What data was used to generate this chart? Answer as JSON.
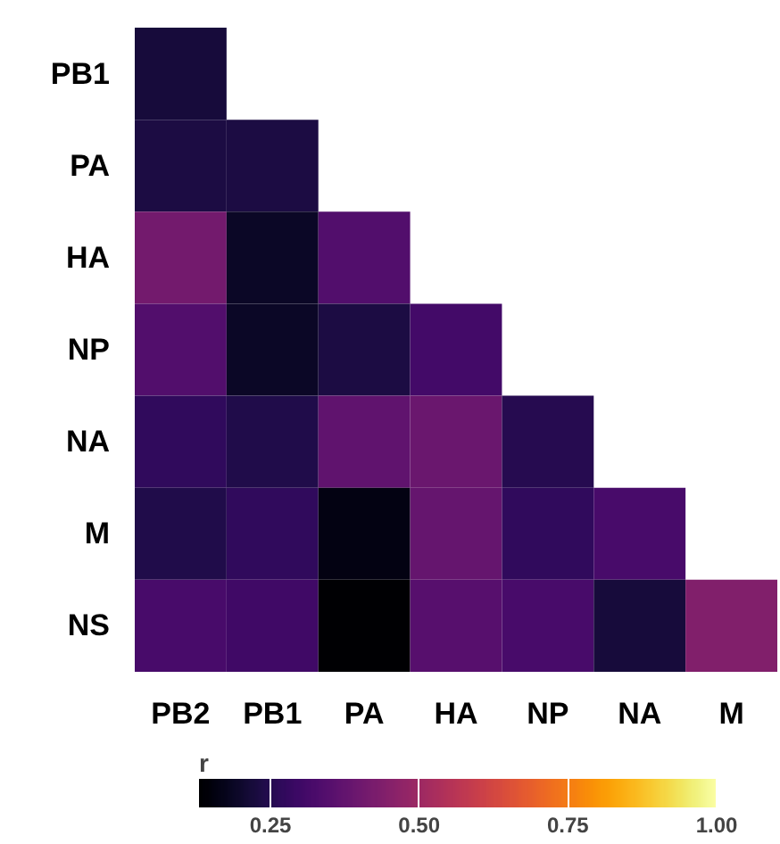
{
  "chart_data": {
    "type": "heatmap",
    "categories": [
      "PB2",
      "PB1",
      "PA",
      "HA",
      "NP",
      "NA",
      "M"
    ],
    "y_categories": [
      "PB1",
      "PA",
      "HA",
      "NP",
      "NA",
      "M",
      "NS"
    ],
    "cells": [
      [
        0.22,
        null,
        null,
        null,
        null,
        null,
        null
      ],
      [
        0.23,
        0.23,
        null,
        null,
        null,
        null,
        null
      ],
      [
        0.41,
        0.19,
        0.34,
        null,
        null,
        null,
        null
      ],
      [
        0.34,
        0.19,
        0.23,
        0.31,
        null,
        null,
        null
      ],
      [
        0.27,
        0.24,
        0.37,
        0.39,
        0.25,
        null,
        null
      ],
      [
        0.24,
        0.27,
        0.16,
        0.38,
        0.27,
        0.32,
        null
      ],
      [
        0.32,
        0.3,
        0.13,
        0.35,
        0.32,
        0.22,
        0.44
      ]
    ],
    "clabel": "r",
    "clim": [
      0.13,
      1.0
    ],
    "cticks": [
      {
        "value": 0.25,
        "label": "0.25"
      },
      {
        "value": 0.5,
        "label": "0.50"
      },
      {
        "value": 0.75,
        "label": "0.75"
      },
      {
        "value": 1.0,
        "label": "1.00"
      }
    ]
  }
}
